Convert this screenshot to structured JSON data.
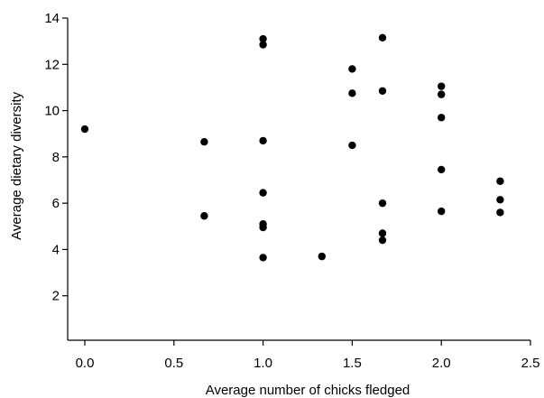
{
  "chart_data": {
    "type": "scatter",
    "title": "",
    "xlabel": "Average number of chicks fledged",
    "ylabel": "Average dietary diversity",
    "xlim": [
      0.0,
      2.5
    ],
    "ylim": [
      0,
      14
    ],
    "x_ticks": [
      0.0,
      0.5,
      1.0,
      1.5,
      2.0,
      2.5
    ],
    "x_tick_labels": [
      "0.0",
      "0.5",
      "1.0",
      "1.5",
      "2.0",
      "2.5"
    ],
    "y_ticks": [
      2,
      4,
      6,
      8,
      10,
      12,
      14
    ],
    "y_tick_labels": [
      "2",
      "4",
      "6",
      "8",
      "10",
      "12",
      "14"
    ],
    "grid": false,
    "marker_color": "#000000",
    "points": [
      {
        "x": 0.0,
        "y": 9.2
      },
      {
        "x": 0.67,
        "y": 8.65
      },
      {
        "x": 0.67,
        "y": 5.45
      },
      {
        "x": 1.0,
        "y": 13.1
      },
      {
        "x": 1.0,
        "y": 12.85
      },
      {
        "x": 1.0,
        "y": 8.7
      },
      {
        "x": 1.0,
        "y": 6.45
      },
      {
        "x": 1.0,
        "y": 5.1
      },
      {
        "x": 1.0,
        "y": 4.95
      },
      {
        "x": 1.0,
        "y": 3.65
      },
      {
        "x": 1.33,
        "y": 3.7
      },
      {
        "x": 1.5,
        "y": 11.8
      },
      {
        "x": 1.5,
        "y": 10.75
      },
      {
        "x": 1.5,
        "y": 8.5
      },
      {
        "x": 1.67,
        "y": 13.15
      },
      {
        "x": 1.67,
        "y": 10.85
      },
      {
        "x": 1.67,
        "y": 6.0
      },
      {
        "x": 1.67,
        "y": 4.7
      },
      {
        "x": 1.67,
        "y": 4.4
      },
      {
        "x": 2.0,
        "y": 11.05
      },
      {
        "x": 2.0,
        "y": 10.7
      },
      {
        "x": 2.0,
        "y": 9.7
      },
      {
        "x": 2.0,
        "y": 7.45
      },
      {
        "x": 2.0,
        "y": 5.65
      },
      {
        "x": 2.33,
        "y": 6.95
      },
      {
        "x": 2.33,
        "y": 6.15
      },
      {
        "x": 2.33,
        "y": 5.6
      }
    ]
  }
}
